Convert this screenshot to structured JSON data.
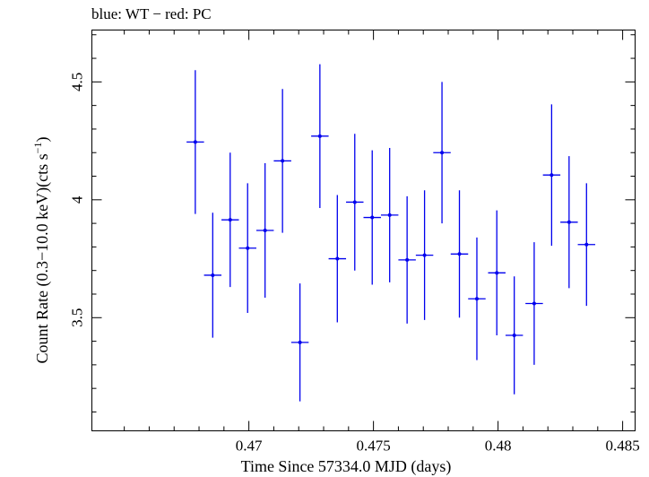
{
  "chart_data": {
    "type": "scatter",
    "title": "blue: WT − red: PC",
    "xlabel": "Time Since 57334.0 MJD (days)",
    "ylabel_main": "Count Rate (0.3−10.0 keV)(cts s",
    "ylabel_sup": "−1",
    "ylabel_end": ")",
    "xlim": [
      0.4637,
      0.4855
    ],
    "ylim": [
      3.02,
      4.72
    ],
    "x_ticks": [
      0.47,
      0.475,
      0.48,
      0.485
    ],
    "x_tick_labels": [
      "0.47",
      "0.475",
      "0.48",
      "0.485"
    ],
    "y_ticks": [
      3.5,
      4.0,
      4.5
    ],
    "y_tick_labels": [
      "3.5",
      "4",
      "4.5"
    ],
    "grid": false,
    "series": [
      {
        "color": "#0000ee",
        "points": [
          {
            "x": 0.46785,
            "xerr": 0.00035,
            "y": 4.245,
            "yerr": 0.305
          },
          {
            "x": 0.46855,
            "xerr": 0.00035,
            "y": 3.68,
            "yerr": 0.265
          },
          {
            "x": 0.46925,
            "xerr": 0.00035,
            "y": 3.915,
            "yerr": 0.285
          },
          {
            "x": 0.46995,
            "xerr": 0.00035,
            "y": 3.795,
            "yerr": 0.275
          },
          {
            "x": 0.47065,
            "xerr": 0.00035,
            "y": 3.87,
            "yerr": 0.285
          },
          {
            "x": 0.47135,
            "xerr": 0.00035,
            "y": 4.165,
            "yerr": 0.305
          },
          {
            "x": 0.47205,
            "xerr": 0.00035,
            "y": 3.395,
            "yerr": 0.25
          },
          {
            "x": 0.47285,
            "xerr": 0.00035,
            "y": 4.27,
            "yerr": 0.305
          },
          {
            "x": 0.47355,
            "xerr": 0.00035,
            "y": 3.75,
            "yerr": 0.27
          },
          {
            "x": 0.47425,
            "xerr": 0.00035,
            "y": 3.99,
            "yerr": 0.29
          },
          {
            "x": 0.47495,
            "xerr": 0.00035,
            "y": 3.925,
            "yerr": 0.285
          },
          {
            "x": 0.47565,
            "xerr": 0.00035,
            "y": 3.935,
            "yerr": 0.285
          },
          {
            "x": 0.47635,
            "xerr": 0.00035,
            "y": 3.745,
            "yerr": 0.27
          },
          {
            "x": 0.47705,
            "xerr": 0.00035,
            "y": 3.765,
            "yerr": 0.275
          },
          {
            "x": 0.47775,
            "xerr": 0.00035,
            "y": 4.2,
            "yerr": 0.3
          },
          {
            "x": 0.47845,
            "xerr": 0.00035,
            "y": 3.77,
            "yerr": 0.27
          },
          {
            "x": 0.47915,
            "xerr": 0.00035,
            "y": 3.58,
            "yerr": 0.26
          },
          {
            "x": 0.47995,
            "xerr": 0.00035,
            "y": 3.69,
            "yerr": 0.265
          },
          {
            "x": 0.48065,
            "xerr": 0.00035,
            "y": 3.425,
            "yerr": 0.25
          },
          {
            "x": 0.48145,
            "xerr": 0.00035,
            "y": 3.56,
            "yerr": 0.26
          },
          {
            "x": 0.48215,
            "xerr": 0.00035,
            "y": 4.105,
            "yerr": 0.3
          },
          {
            "x": 0.48285,
            "xerr": 0.00035,
            "y": 3.905,
            "yerr": 0.28
          },
          {
            "x": 0.48355,
            "xerr": 0.00035,
            "y": 3.81,
            "yerr": 0.26
          }
        ]
      }
    ]
  }
}
